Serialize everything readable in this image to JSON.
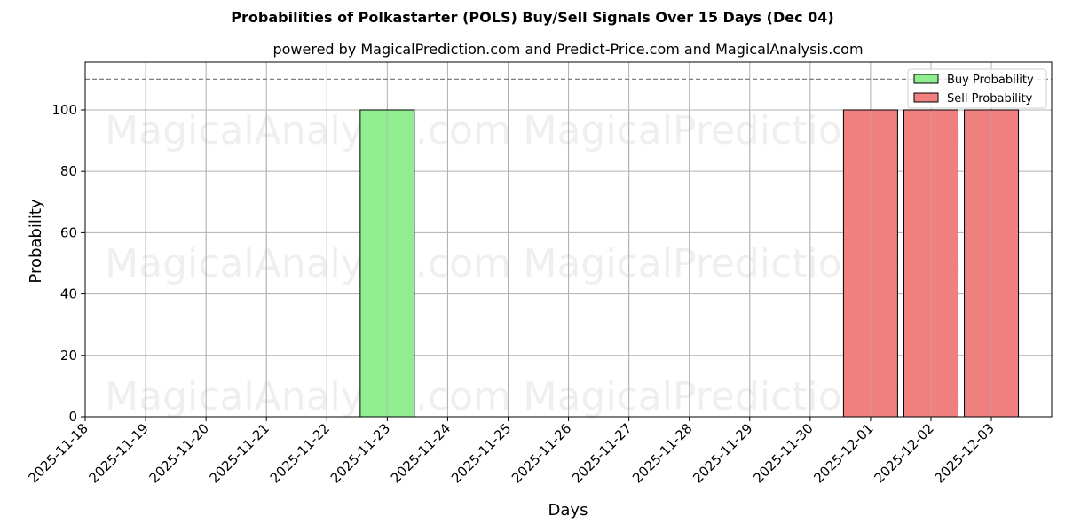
{
  "chart_data": {
    "type": "bar",
    "title": "Probabilities of Polkastarter (POLS) Buy/Sell Signals Over 15 Days (Dec 04)",
    "subtitle": "powered by MagicalPrediction.com and Predict-Price.com and MagicalAnalysis.com",
    "xlabel": "Days",
    "ylabel": "Probability",
    "ylim": [
      0,
      115.6
    ],
    "yticks": [
      0,
      20,
      40,
      60,
      80,
      100
    ],
    "categories": [
      "2025-11-18",
      "2025-11-19",
      "2025-11-20",
      "2025-11-21",
      "2025-11-22",
      "2025-11-23",
      "2025-11-24",
      "2025-11-25",
      "2025-11-26",
      "2025-11-27",
      "2025-11-28",
      "2025-11-29",
      "2025-11-30",
      "2025-12-01",
      "2025-12-02",
      "2025-12-03"
    ],
    "series": [
      {
        "name": "Buy Probability",
        "color": "#90ee90",
        "values": [
          0,
          0,
          0,
          0,
          0,
          100,
          0,
          0,
          0,
          0,
          0,
          0,
          0,
          0,
          0,
          0
        ]
      },
      {
        "name": "Sell Probability",
        "color": "#f08080",
        "values": [
          0,
          0,
          0,
          0,
          0,
          0,
          0,
          0,
          0,
          0,
          0,
          0,
          0,
          100,
          100,
          100
        ]
      }
    ],
    "reference_line": {
      "y": 110,
      "style": "dashed",
      "color": "#808080"
    },
    "grid": true,
    "legend_position": "upper right",
    "watermarks": [
      "MagicalAnalysis.com",
      "MagicalPrediction.com"
    ]
  }
}
